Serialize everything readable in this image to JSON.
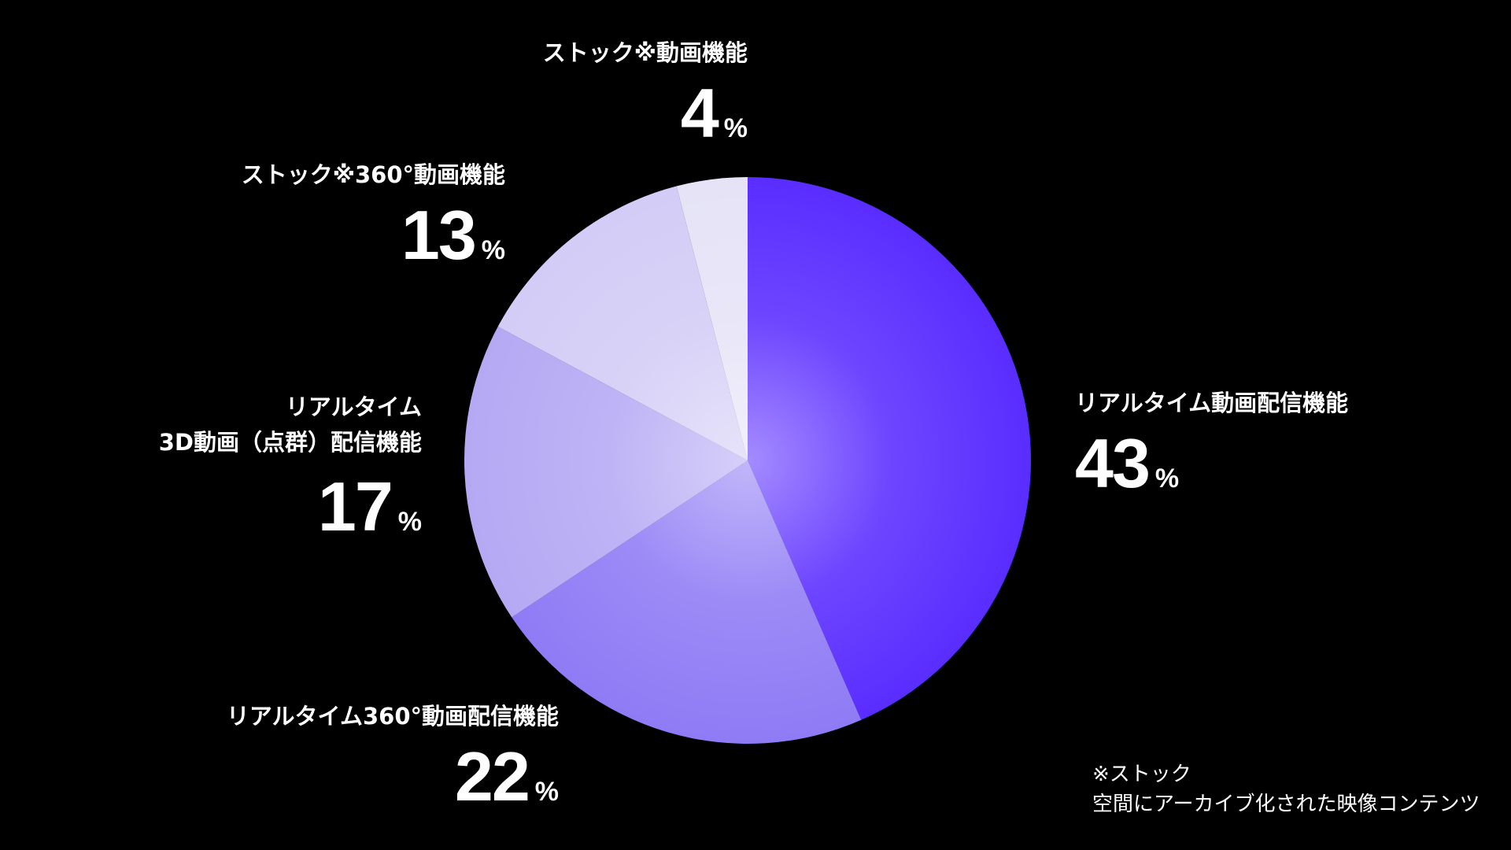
{
  "chart_data": {
    "type": "pie",
    "slices": [
      {
        "name": "リアルタイム動画配信機能",
        "value": 43,
        "unit": "%",
        "color": "#5a2dff"
      },
      {
        "name": "リアルタイム360°動画配信機能",
        "value": 22,
        "unit": "%",
        "color": "#8f7bf5"
      },
      {
        "name": "リアルタイム\n3D動画（点群）配信機能",
        "value": 17,
        "unit": "%",
        "color": "#b5a9f4"
      },
      {
        "name": "ストック※360°動画機能",
        "value": 13,
        "unit": "%",
        "color": "#d3ccf6"
      },
      {
        "name": "ストック※動画機能",
        "value": 4,
        "unit": "%",
        "color": "#e6e3f7"
      }
    ],
    "start_angle": "12 o'clock",
    "direction": "clockwise",
    "legend": "none"
  },
  "footnote": {
    "line1": "※ストック",
    "line2": "空間にアーカイブ化された映像コンテンツ"
  }
}
